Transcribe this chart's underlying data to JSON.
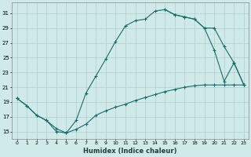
{
  "bg_color": "#d0eaea",
  "grid_color": "#b0cccc",
  "line_color": "#1a6b6b",
  "xlabel": "Humidex (Indice chaleur)",
  "xlim": [
    -0.5,
    23.5
  ],
  "ylim": [
    14.0,
    32.5
  ],
  "yticks": [
    15,
    17,
    19,
    21,
    23,
    25,
    27,
    29,
    31
  ],
  "xticks": [
    0,
    1,
    2,
    3,
    4,
    5,
    6,
    7,
    8,
    9,
    10,
    11,
    12,
    13,
    14,
    15,
    16,
    17,
    18,
    19,
    20,
    21,
    22,
    23
  ],
  "curve_main_x": [
    0,
    1,
    2,
    3,
    4,
    5,
    6,
    7,
    8,
    9,
    10,
    11,
    12,
    13,
    14,
    15,
    16,
    17,
    18,
    19,
    20,
    21,
    22,
    23
  ],
  "curve_main_y": [
    19.5,
    18.5,
    17.2,
    16.5,
    15.0,
    14.8,
    16.5,
    20.2,
    22.5,
    24.8,
    27.2,
    29.3,
    30.0,
    30.2,
    31.3,
    31.5,
    30.8,
    30.5,
    30.2,
    29.0,
    26.0,
    21.8,
    24.3,
    21.3
  ],
  "curve_right_x": [
    15,
    16,
    17,
    18,
    19,
    20,
    21,
    22,
    23
  ],
  "curve_right_y": [
    31.5,
    30.8,
    30.5,
    30.2,
    29.0,
    29.0,
    26.5,
    24.3,
    21.3
  ],
  "curve_bot_x": [
    0,
    1,
    2,
    3,
    4,
    5,
    6,
    7,
    8,
    9,
    10,
    11,
    12,
    13,
    14,
    15,
    16,
    17,
    18,
    19,
    20,
    21,
    22,
    23
  ],
  "curve_bot_y": [
    19.5,
    18.5,
    17.2,
    16.5,
    15.4,
    14.8,
    15.3,
    16.0,
    17.2,
    17.8,
    18.3,
    18.7,
    19.2,
    19.6,
    20.0,
    20.4,
    20.7,
    21.0,
    21.2,
    21.3,
    21.3,
    21.3,
    21.3,
    21.3
  ]
}
